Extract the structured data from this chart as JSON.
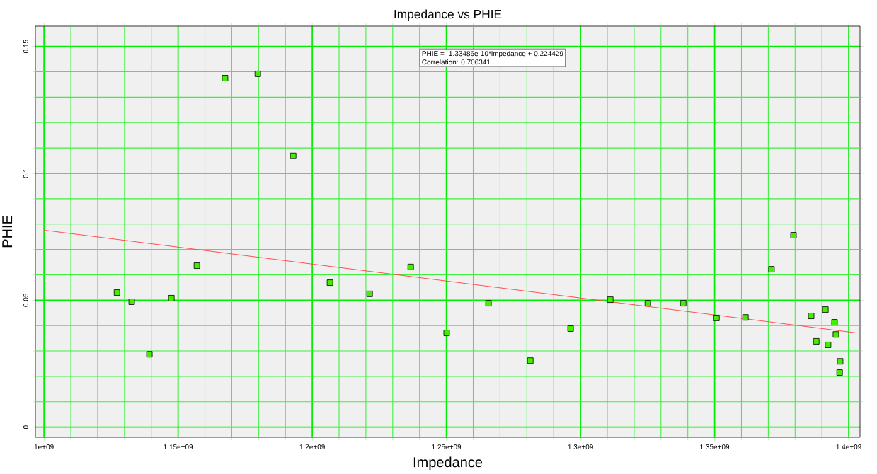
{
  "chart_data": {
    "type": "scatter",
    "title": "Impedance vs PHIE",
    "xlabel": "Impedance",
    "ylabel": "PHIE",
    "xlim": [
      1096800000.0,
      1404200000.0
    ],
    "ylim": [
      -0.004,
      0.158
    ],
    "xticks": [
      {
        "value": 1100000000.0,
        "label": "1e+09"
      },
      {
        "value": 1110000000.0,
        "label": null
      },
      {
        "value": 1120000000.0,
        "label": null
      },
      {
        "value": 1130000000.0,
        "label": null
      },
      {
        "value": 1140000000.0,
        "label": null
      },
      {
        "value": 1150000000.0,
        "label": "1.15e+09"
      },
      {
        "value": 1160000000.0,
        "label": null
      },
      {
        "value": 1170000000.0,
        "label": null
      },
      {
        "value": 1180000000.0,
        "label": null
      },
      {
        "value": 1190000000.0,
        "label": null
      },
      {
        "value": 1200000000.0,
        "label": "1.2e+09"
      },
      {
        "value": 1210000000.0,
        "label": null
      },
      {
        "value": 1220000000.0,
        "label": null
      },
      {
        "value": 1230000000.0,
        "label": null
      },
      {
        "value": 1240000000.0,
        "label": null
      },
      {
        "value": 1250000000.0,
        "label": "1.25e+09"
      },
      {
        "value": 1260000000.0,
        "label": null
      },
      {
        "value": 1270000000.0,
        "label": null
      },
      {
        "value": 1280000000.0,
        "label": null
      },
      {
        "value": 1290000000.0,
        "label": null
      },
      {
        "value": 1300000000.0,
        "label": "1.3e+09"
      },
      {
        "value": 1310000000.0,
        "label": null
      },
      {
        "value": 1320000000.0,
        "label": null
      },
      {
        "value": 1330000000.0,
        "label": null
      },
      {
        "value": 1340000000.0,
        "label": null
      },
      {
        "value": 1350000000.0,
        "label": "1.35e+09"
      },
      {
        "value": 1360000000.0,
        "label": null
      },
      {
        "value": 1370000000.0,
        "label": null
      },
      {
        "value": 1380000000.0,
        "label": null
      },
      {
        "value": 1390000000.0,
        "label": null
      },
      {
        "value": 1400000000.0,
        "label": "1.4e+09"
      }
    ],
    "yticks": [
      0,
      {
        "value": 0.01,
        "label": null
      },
      {
        "value": 0.02,
        "label": null
      },
      {
        "value": 0.03,
        "label": null
      },
      {
        "value": 0.04,
        "label": null
      },
      0.05,
      {
        "value": 0.06,
        "label": null
      },
      {
        "value": 0.07,
        "label": null
      },
      {
        "value": 0.08,
        "label": null
      },
      {
        "value": 0.09,
        "label": null
      },
      0.1,
      {
        "value": 0.11,
        "label": null
      },
      {
        "value": 0.12,
        "label": null
      },
      {
        "value": 0.13,
        "label": null
      },
      {
        "value": 0.14,
        "label": null
      },
      0.15
    ],
    "grid": true,
    "annotations": [
      "PHIE = -1.33486e-10*impedance + 0.224429",
      "Correlation: 0.706341"
    ],
    "series": [
      {
        "marker": "square",
        "color": "#44ee00",
        "x": [
          1127200000.0,
          1132700000.0,
          1139300000.0,
          1147500000.0,
          1157000000.0,
          1167500000.0,
          1179700000.0,
          1192900000.0,
          1206600000.0,
          1221400000.0,
          1236700000.0,
          1250100000.0,
          1265700000.0,
          1281300000.0,
          1296300000.0,
          1311100000.0,
          1325100000.0,
          1338300000.0,
          1350700000.0,
          1361500000.0,
          1371200000.0,
          1379400000.0,
          1386000000.0,
          1387900000.0,
          1391300000.0,
          1392300000.0,
          1394700000.0,
          1395200000.0,
          1396800000.0,
          1396600000.0
        ],
        "values": [
          0.053,
          0.0494,
          0.0287,
          0.0508,
          0.0636,
          0.1375,
          0.1392,
          0.1069,
          0.0569,
          0.0525,
          0.0631,
          0.0371,
          0.0488,
          0.0262,
          0.0388,
          0.0502,
          0.0488,
          0.0488,
          0.043,
          0.0432,
          0.0622,
          0.0756,
          0.0438,
          0.0338,
          0.0463,
          0.0324,
          0.0413,
          0.0365,
          0.0259,
          0.0215
        ]
      },
      {
        "type": "line",
        "marker": "none",
        "color": "#ff4444",
        "x": [
          1100000000.0,
          1403000000.0
        ],
        "values": [
          0.0776,
          0.0371
        ]
      }
    ]
  }
}
